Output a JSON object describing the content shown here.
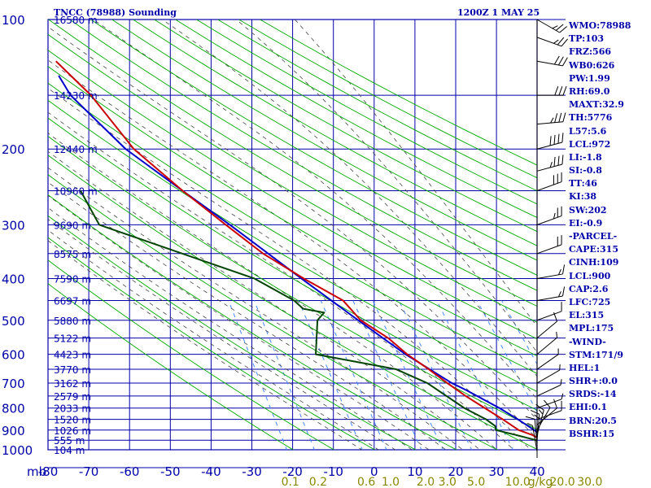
{
  "header": {
    "title": "TNCC (78988) Sounding",
    "datetime": "1200Z  1 MAY 25"
  },
  "indices": [
    "WMO:78988",
    "TP:103",
    "FRZ:566",
    "WB0:626",
    "PW:1.99",
    "RH:69.0",
    "MAXT:32.9",
    "TH:5776",
    "L57:5.6",
    "LCL:972",
    "LI:-1.8",
    "SI:-0.8",
    "TT:46",
    "KI:38",
    "SW:202",
    "EI:-0.9",
    "-PARCEL-",
    "CAPE:315",
    "CINH:109",
    "LCL:900",
    "CAP:2.6",
    "LFC:725",
    "EL:315",
    "MPL:175",
    "-WIND-",
    "STM:171/9",
    "HEL:1",
    "SHR+:0.0",
    "SRDS:-14",
    "EHI:0.1",
    "BRN:20.5",
    "BSHR:15"
  ],
  "colors": {
    "grid": "#0000aa",
    "temperature": "#cc0000",
    "dewpoint": "#004400",
    "parcel": "#0000cc",
    "dry_adiabat": "#00aa00",
    "moist_adiabat": "#444444",
    "mixing_ratio": "#4488ff",
    "mixing_ratio_labels": "#888800",
    "wind_barbs": "#000000"
  },
  "chart_data": {
    "type": "line",
    "title": "TNCC (78988) Sounding",
    "axis_unit_left": "mb",
    "mixing_ratio_unit": "g/kg",
    "pressure_levels": [
      100,
      200,
      300,
      400,
      500,
      600,
      700,
      800,
      900,
      1000
    ],
    "pressure_ticks": [
      "100",
      "200",
      "300",
      "400",
      "500",
      "600",
      "700",
      "800",
      "900",
      "1000"
    ],
    "temperature_ticks": [
      "-80",
      "-70",
      "-60",
      "-50",
      "-40",
      "-30",
      "-20",
      "-10",
      "0",
      "10",
      "20",
      "30",
      "40"
    ],
    "temperature_range": [
      -80,
      40
    ],
    "pressure_range": [
      100,
      1050
    ],
    "mixing_ratio_ticks": [
      "0.1",
      "0.2",
      "0.6",
      "1.0",
      "2.0",
      "3.0",
      "5.0",
      "10.0",
      "20.0",
      "30.0"
    ],
    "height_labels": [
      {
        "p": 100,
        "label": "16580 m"
      },
      {
        "p": 150,
        "label": "14230 m"
      },
      {
        "p": 200,
        "label": "12440 m"
      },
      {
        "p": 250,
        "label": "10960 m"
      },
      {
        "p": 300,
        "label": "9690 m"
      },
      {
        "p": 350,
        "label": "8575 m"
      },
      {
        "p": 400,
        "label": "7590 m"
      },
      {
        "p": 450,
        "label": "6697 m"
      },
      {
        "p": 500,
        "label": "5880 m"
      },
      {
        "p": 550,
        "label": "5122 m"
      },
      {
        "p": 600,
        "label": "4423 m"
      },
      {
        "p": 650,
        "label": "3770 m"
      },
      {
        "p": 700,
        "label": "3162 m"
      },
      {
        "p": 750,
        "label": "2579 m"
      },
      {
        "p": 800,
        "label": "2033 m"
      },
      {
        "p": 850,
        "label": "1520 m"
      },
      {
        "p": 900,
        "label": "1026 m"
      },
      {
        "p": 950,
        "label": "555 m"
      },
      {
        "p": 1000,
        "label": "104 m"
      }
    ],
    "series": [
      {
        "key": "temperature",
        "points": [
          [
            1008,
            27.4
          ],
          [
            1000,
            26.0
          ],
          [
            975,
            23.2
          ],
          [
            950,
            21.4
          ],
          [
            925,
            19.4
          ],
          [
            900,
            16.2
          ],
          [
            850,
            12.8
          ],
          [
            800,
            8.9
          ],
          [
            750,
            4.8
          ],
          [
            700,
            0.9
          ],
          [
            650,
            -3.0
          ],
          [
            600,
            -7.6
          ],
          [
            550,
            -11.5
          ],
          [
            500,
            -17.4
          ],
          [
            450,
            -20.8
          ],
          [
            400,
            -29.4
          ],
          [
            350,
            -38.2
          ],
          [
            300,
            -46.0
          ],
          [
            250,
            -55.0
          ],
          [
            200,
            -65.0
          ],
          [
            150,
            -73.0
          ],
          [
            125,
            -80.0
          ]
        ]
      },
      {
        "key": "dewpoint",
        "points": [
          [
            1008,
            26.0
          ],
          [
            1000,
            22.0
          ],
          [
            950,
            20.0
          ],
          [
            925,
            15.5
          ],
          [
            900,
            10.6
          ],
          [
            880,
            10.6
          ],
          [
            850,
            8.7
          ],
          [
            800,
            3.9
          ],
          [
            700,
            -4.0
          ],
          [
            650,
            -11.0
          ],
          [
            600,
            -30.0
          ],
          [
            500,
            -28.0
          ],
          [
            480,
            -26.0
          ],
          [
            470,
            -31.0
          ],
          [
            450,
            -32.8
          ],
          [
            400,
            -41.5
          ],
          [
            350,
            -58.0
          ],
          [
            300,
            -77.0
          ],
          [
            250,
            -80.0
          ]
        ]
      },
      {
        "key": "parcel",
        "points": [
          [
            1008,
            27.4
          ],
          [
            972,
            23.5
          ],
          [
            900,
            20.0
          ],
          [
            850,
            16.5
          ],
          [
            800,
            12.5
          ],
          [
            725,
            5.0
          ],
          [
            700,
            2.0
          ],
          [
            600,
            -8.0
          ],
          [
            500,
            -18.0
          ],
          [
            400,
            -30.0
          ],
          [
            300,
            -45.0
          ],
          [
            250,
            -55.0
          ],
          [
            200,
            -67.0
          ],
          [
            150,
            -78.0
          ],
          [
            135,
            -80.0
          ]
        ]
      }
    ],
    "wind_barbs": [
      {
        "p": 1008,
        "dir": 170,
        "spd": 5
      },
      {
        "p": 975,
        "dir": 175,
        "spd": 10
      },
      {
        "p": 950,
        "dir": 185,
        "spd": 15
      },
      {
        "p": 925,
        "dir": 195,
        "spd": 15
      },
      {
        "p": 900,
        "dir": 210,
        "spd": 10
      },
      {
        "p": 875,
        "dir": 230,
        "spd": 10
      },
      {
        "p": 850,
        "dir": 250,
        "spd": 10
      },
      {
        "p": 800,
        "dir": 250,
        "spd": 5
      },
      {
        "p": 750,
        "dir": 245,
        "spd": 5
      },
      {
        "p": 700,
        "dir": 240,
        "spd": 5
      },
      {
        "p": 650,
        "dir": 235,
        "spd": 5
      },
      {
        "p": 600,
        "dir": 230,
        "spd": 5
      },
      {
        "p": 550,
        "dir": 230,
        "spd": 10
      },
      {
        "p": 500,
        "dir": 250,
        "spd": 10
      },
      {
        "p": 450,
        "dir": 260,
        "spd": 15
      },
      {
        "p": 400,
        "dir": 260,
        "spd": 15
      },
      {
        "p": 350,
        "dir": 250,
        "spd": 20
      },
      {
        "p": 300,
        "dir": 250,
        "spd": 25
      },
      {
        "p": 250,
        "dir": 250,
        "spd": 30
      },
      {
        "p": 225,
        "dir": 255,
        "spd": 35
      },
      {
        "p": 200,
        "dir": 255,
        "spd": 40
      },
      {
        "p": 175,
        "dir": 265,
        "spd": 35
      },
      {
        "p": 150,
        "dir": 270,
        "spd": 30
      },
      {
        "p": 125,
        "dir": 280,
        "spd": 30
      },
      {
        "p": 110,
        "dir": 290,
        "spd": 25
      },
      {
        "p": 100,
        "dir": 300,
        "spd": 25
      }
    ]
  }
}
